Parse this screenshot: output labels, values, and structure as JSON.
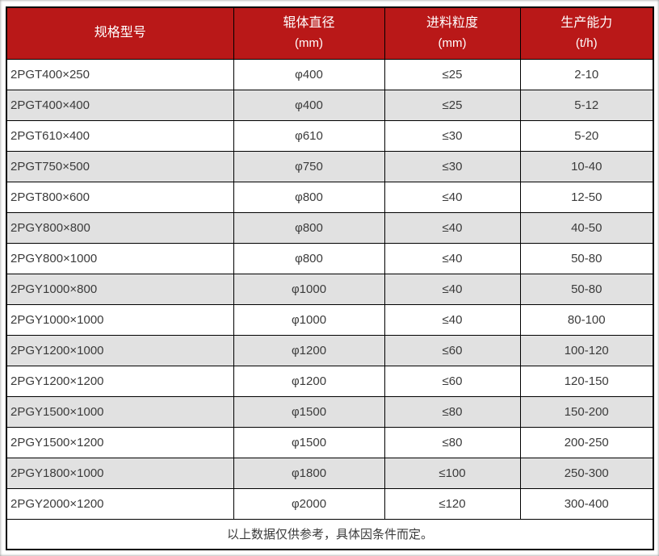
{
  "table": {
    "columns": [
      {
        "label": "规格型号",
        "unit": ""
      },
      {
        "label": "辊体直径",
        "unit": "(mm)"
      },
      {
        "label": "进料粒度",
        "unit": "(mm)"
      },
      {
        "label": "生产能力",
        "unit": "(t/h)"
      }
    ],
    "rows": [
      [
        "2PGT400×250",
        "φ400",
        "≤25",
        "2-10"
      ],
      [
        "2PGT400×400",
        "φ400",
        "≤25",
        "5-12"
      ],
      [
        "2PGT610×400",
        "φ610",
        "≤30",
        "5-20"
      ],
      [
        "2PGT750×500",
        "φ750",
        "≤30",
        "10-40"
      ],
      [
        "2PGT800×600",
        "φ800",
        "≤40",
        "12-50"
      ],
      [
        "2PGY800×800",
        "φ800",
        "≤40",
        "40-50"
      ],
      [
        "2PGY800×1000",
        "φ800",
        "≤40",
        "50-80"
      ],
      [
        "2PGY1000×800",
        "φ1000",
        "≤40",
        "50-80"
      ],
      [
        "2PGY1000×1000",
        "φ1000",
        "≤40",
        "80-100"
      ],
      [
        "2PGY1200×1000",
        "φ1200",
        "≤60",
        "100-120"
      ],
      [
        "2PGY1200×1200",
        "φ1200",
        "≤60",
        "120-150"
      ],
      [
        "2PGY1500×1000",
        "φ1500",
        "≤80",
        "150-200"
      ],
      [
        "2PGY1500×1200",
        "φ1500",
        "≤80",
        "200-250"
      ],
      [
        "2PGY1800×1000",
        "φ1800",
        "≤100",
        "250-300"
      ],
      [
        "2PGY2000×1200",
        "φ2000",
        "≤120",
        "300-400"
      ]
    ],
    "footer": "以上数据仅供参考，具体因条件而定。"
  },
  "colors": {
    "header_bg": "#b91818",
    "header_text": "#ffffff",
    "row_bg": "#ffffff",
    "row_alt_bg": "#e1e1e1",
    "body_text": "#3b3b3b",
    "border": "#000000"
  },
  "chart_data": {
    "type": "table",
    "title": "",
    "columns": [
      "规格型号",
      "辊体直径 (mm)",
      "进料粒度 (mm)",
      "生产能力 (t/h)"
    ],
    "rows": [
      [
        "2PGT400×250",
        "φ400",
        "≤25",
        "2-10"
      ],
      [
        "2PGT400×400",
        "φ400",
        "≤25",
        "5-12"
      ],
      [
        "2PGT610×400",
        "φ610",
        "≤30",
        "5-20"
      ],
      [
        "2PGT750×500",
        "φ750",
        "≤30",
        "10-40"
      ],
      [
        "2PGT800×600",
        "φ800",
        "≤40",
        "12-50"
      ],
      [
        "2PGY800×800",
        "φ800",
        "≤40",
        "40-50"
      ],
      [
        "2PGY800×1000",
        "φ800",
        "≤40",
        "50-80"
      ],
      [
        "2PGY1000×800",
        "φ1000",
        "≤40",
        "50-80"
      ],
      [
        "2PGY1000×1000",
        "φ1000",
        "≤40",
        "80-100"
      ],
      [
        "2PGY1200×1000",
        "φ1200",
        "≤60",
        "100-120"
      ],
      [
        "2PGY1200×1200",
        "φ1200",
        "≤60",
        "120-150"
      ],
      [
        "2PGY1500×1000",
        "φ1500",
        "≤80",
        "150-200"
      ],
      [
        "2PGY1500×1200",
        "φ1500",
        "≤80",
        "200-250"
      ],
      [
        "2PGY1800×1000",
        "φ1800",
        "≤100",
        "250-300"
      ],
      [
        "2PGY2000×1200",
        "φ2000",
        "≤120",
        "300-400"
      ]
    ],
    "note": "以上数据仅供参考，具体因条件而定。"
  }
}
